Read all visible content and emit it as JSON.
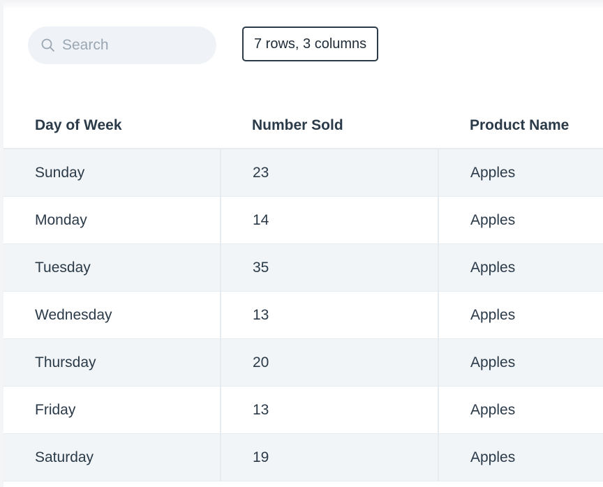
{
  "toolbar": {
    "search": {
      "placeholder": "Search",
      "value": "",
      "icon": "search-icon"
    },
    "row_count_label": "7 rows, 3 columns"
  },
  "table": {
    "columns": [
      "Day of Week",
      "Number Sold",
      "Product Name"
    ],
    "rows": [
      [
        "Sunday",
        "23",
        "Apples"
      ],
      [
        "Monday",
        "14",
        "Apples"
      ],
      [
        "Tuesday",
        "35",
        "Apples"
      ],
      [
        "Wednesday",
        "13",
        "Apples"
      ],
      [
        "Thursday",
        "20",
        "Apples"
      ],
      [
        "Friday",
        "13",
        "Apples"
      ],
      [
        "Saturday",
        "19",
        "Apples"
      ]
    ]
  },
  "colors": {
    "text": "#2b3a48",
    "stripe": "#f2f5f8",
    "search_bg": "#eff3f7",
    "border": "#e6ebf0"
  }
}
